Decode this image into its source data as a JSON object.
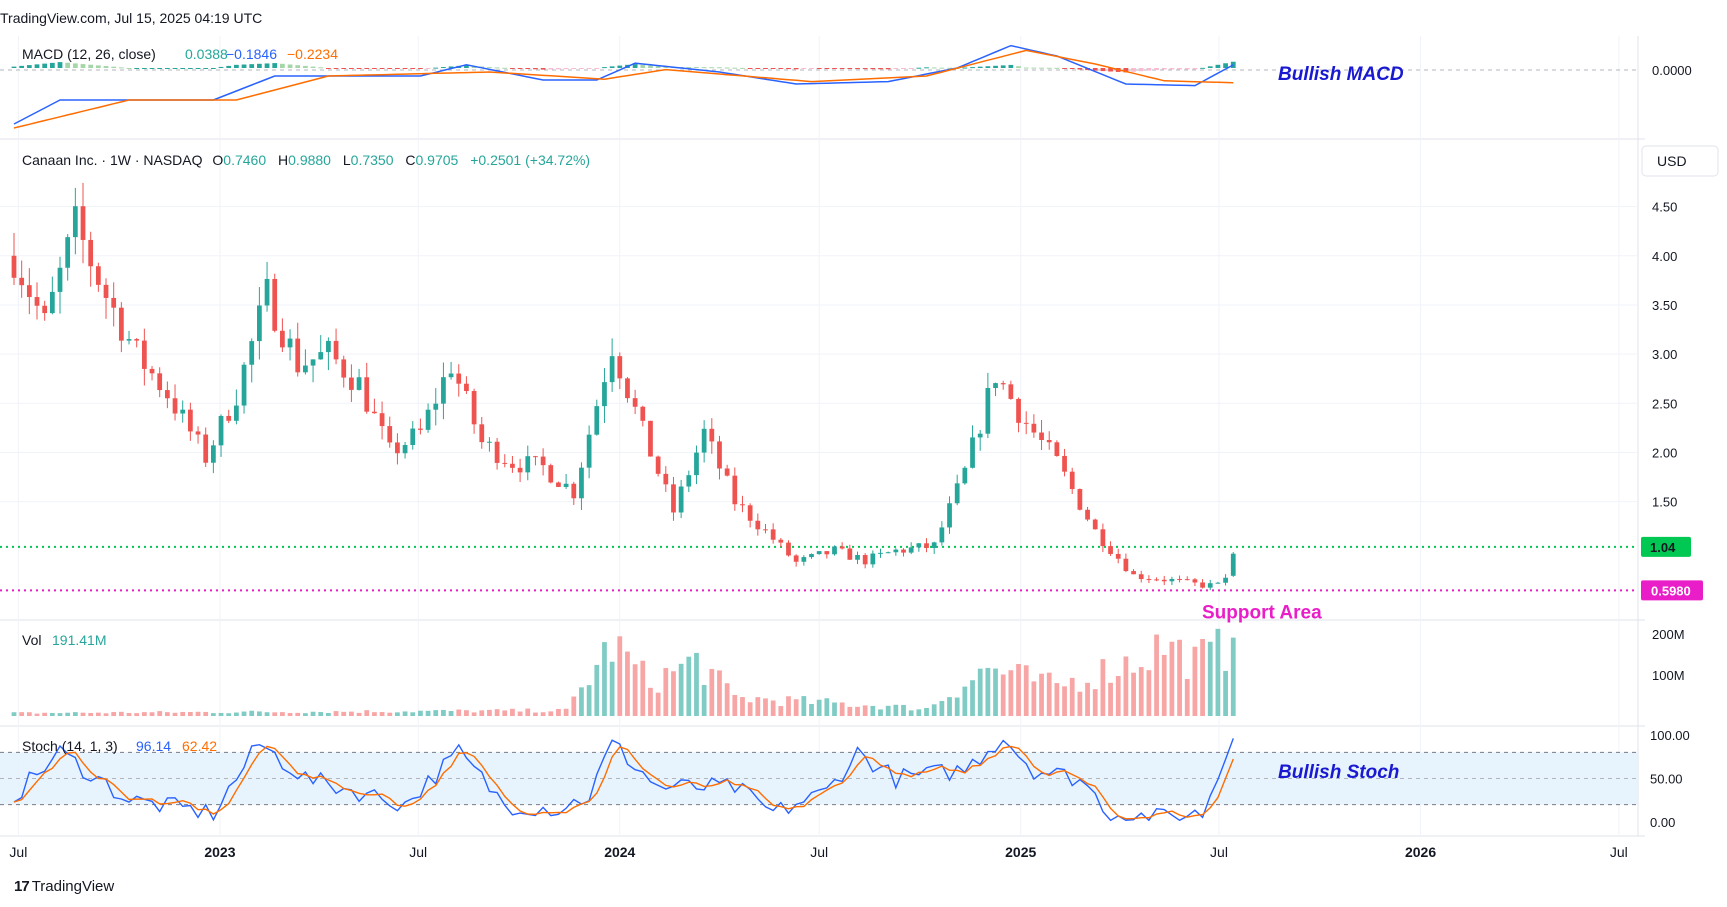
{
  "header": {
    "text": "TradingView.com, Jul 15, 2025 04:19 UTC"
  },
  "footer": {
    "brand": "TradingView"
  },
  "colors": {
    "up": "#26a69a",
    "down": "#ef5350",
    "up_light": "#a5d6a7",
    "down_light": "#f8bbd0",
    "macd_line": "#2962ff",
    "signal_line": "#ff6d00",
    "stoch_k": "#2962ff",
    "stoch_d": "#ff6d00",
    "resistance": "#00c853",
    "support": "#e91ec8",
    "annotation_blue": "#1919d2",
    "annotation_magenta": "#e91ec8",
    "stoch_band": "#e3f2fd"
  },
  "macd": {
    "legend_name": "MACD (12, 26, close)",
    "values": [
      "0.0388",
      "−0.1846",
      "−0.2234"
    ],
    "axis_label": "0.0000",
    "annotation": "Bullish MACD"
  },
  "price": {
    "legend": {
      "title": "Canaan Inc. · 1W · NASDAQ",
      "o_label": "O",
      "o": "0.7460",
      "h_label": "H",
      "h": "0.9880",
      "l_label": "L",
      "l": "0.7350",
      "c_label": "C",
      "c": "0.9705",
      "change": "+0.2501 (+34.72%)"
    },
    "currency": "USD",
    "ticks": [
      "4.50",
      "4.00",
      "3.50",
      "3.00",
      "2.50",
      "2.00",
      "1.50"
    ],
    "resistance_label": "1.04",
    "support_label": "0.5980",
    "support_annotation": "Support Area"
  },
  "volume": {
    "legend_name": "Vol",
    "value": "191.41M",
    "ticks": [
      "200M",
      "100M"
    ]
  },
  "stoch": {
    "legend_name": "Stoch (14, 1, 3)",
    "k": "96.14",
    "d": "62.42",
    "ticks": [
      "100.00",
      "50.00",
      "0.00"
    ],
    "annotation": "Bullish Stoch"
  },
  "time_axis": [
    "Jul",
    "2023",
    "Jul",
    "2024",
    "Jul",
    "2025",
    "Jul",
    "2026",
    "Jul"
  ],
  "chart_data": {
    "type": "candlestick",
    "symbol": "Canaan Inc.",
    "interval": "1W",
    "exchange": "NASDAQ",
    "ylim": [
      0.5,
      4.75
    ],
    "x_range": [
      "2022-06-27",
      "2026-07-13"
    ],
    "horizontal_lines": [
      {
        "value": 1.04,
        "style": "dotted"
      },
      {
        "value": 0.598,
        "style": "dotted"
      }
    ],
    "anchors": [
      [
        "2022-06-27",
        4.0
      ],
      [
        "2022-07-25",
        3.3
      ],
      [
        "2022-08-22",
        4.3
      ],
      [
        "2022-09-19",
        3.6
      ],
      [
        "2022-10-17",
        3.0
      ],
      [
        "2022-11-14",
        2.6
      ],
      [
        "2022-12-19",
        1.95
      ],
      [
        "2023-01-16",
        2.6
      ],
      [
        "2023-02-13",
        3.6
      ],
      [
        "2023-03-13",
        2.9
      ],
      [
        "2023-04-10",
        3.0
      ],
      [
        "2023-05-08",
        2.7
      ],
      [
        "2023-06-05",
        2.0
      ],
      [
        "2023-07-03",
        2.2
      ],
      [
        "2023-07-31",
        2.9
      ],
      [
        "2023-08-28",
        2.1
      ],
      [
        "2023-09-25",
        1.9
      ],
      [
        "2023-10-23",
        1.85
      ],
      [
        "2023-11-20",
        1.6
      ],
      [
        "2023-12-25",
        3.1
      ],
      [
        "2024-01-22",
        2.2
      ],
      [
        "2024-02-19",
        1.4
      ],
      [
        "2024-03-18",
        2.2
      ],
      [
        "2024-04-15",
        1.5
      ],
      [
        "2024-05-13",
        1.2
      ],
      [
        "2024-06-10",
        0.88
      ],
      [
        "2024-07-15",
        1.0
      ],
      [
        "2024-08-12",
        0.9
      ],
      [
        "2024-09-09",
        1.0
      ],
      [
        "2024-10-14",
        1.05
      ],
      [
        "2024-11-11",
        1.8
      ],
      [
        "2024-12-09",
        2.8
      ],
      [
        "2025-01-06",
        2.3
      ],
      [
        "2025-02-03",
        1.9
      ],
      [
        "2025-03-10",
        1.2
      ],
      [
        "2025-04-14",
        0.75
      ],
      [
        "2025-05-19",
        0.7
      ],
      [
        "2025-06-16",
        0.65
      ],
      [
        "2025-07-07",
        0.72
      ],
      [
        "2025-07-14",
        0.9705
      ]
    ],
    "last_candle": {
      "date": "2025-07-14",
      "open": 0.746,
      "high": 0.988,
      "low": 0.735,
      "close": 0.9705
    },
    "volume_ylim": [
      0,
      210
    ],
    "volume_anchors": [
      [
        "2022-06-27",
        8
      ],
      [
        "2023-11-13",
        15
      ],
      [
        "2023-12-25",
        195
      ],
      [
        "2024-01-29",
        90
      ],
      [
        "2024-03-11",
        150
      ],
      [
        "2024-04-15",
        50
      ],
      [
        "2024-08-12",
        30
      ],
      [
        "2024-10-07",
        20
      ],
      [
        "2024-12-02",
        130
      ],
      [
        "2025-02-03",
        80
      ],
      [
        "2025-04-14",
        150
      ],
      [
        "2025-05-12",
        195
      ],
      [
        "2025-06-09",
        150
      ],
      [
        "2025-07-14",
        191.41
      ]
    ],
    "stoch_ylim": [
      0,
      100
    ],
    "stoch_bands": [
      20,
      50,
      80
    ],
    "stoch_anchors": [
      [
        "2022-06-27",
        30
      ],
      [
        "2022-08-08",
        80
      ],
      [
        "2022-10-10",
        25
      ],
      [
        "2022-12-26",
        10
      ],
      [
        "2023-02-06",
        90
      ],
      [
        "2023-03-20",
        50
      ],
      [
        "2023-05-22",
        30
      ],
      [
        "2023-06-19",
        20
      ],
      [
        "2023-08-07",
        80
      ],
      [
        "2023-09-18",
        20
      ],
      [
        "2023-11-06",
        15
      ],
      [
        "2023-12-04",
        30
      ],
      [
        "2023-12-25",
        90
      ],
      [
        "2024-02-05",
        40
      ],
      [
        "2024-04-15",
        40
      ],
      [
        "2024-05-20",
        10
      ],
      [
        "2024-07-08",
        35
      ],
      [
        "2024-08-05",
        80
      ],
      [
        "2024-09-09",
        50
      ],
      [
        "2024-11-11",
        60
      ],
      [
        "2024-12-16",
        98
      ],
      [
        "2025-01-13",
        60
      ],
      [
        "2025-02-24",
        50
      ],
      [
        "2025-03-24",
        10
      ],
      [
        "2025-05-05",
        5
      ],
      [
        "2025-06-16",
        10
      ],
      [
        "2025-07-14",
        96.14
      ]
    ],
    "macd_ylim": [
      -0.8,
      0.35
    ],
    "macd_line_anchors": [
      [
        "2022-06-27",
        -0.7
      ],
      [
        "2022-08-08",
        -0.4
      ],
      [
        "2022-12-26",
        -0.4
      ],
      [
        "2023-02-20",
        -0.1
      ],
      [
        "2023-07-03",
        -0.1
      ],
      [
        "2023-08-14",
        0.04
      ],
      [
        "2023-10-23",
        -0.15
      ],
      [
        "2023-12-11",
        -0.15
      ],
      [
        "2024-01-15",
        0.06
      ],
      [
        "2024-04-01",
        -0.05
      ],
      [
        "2024-06-10",
        -0.2
      ],
      [
        "2024-09-02",
        -0.17
      ],
      [
        "2024-11-04",
        0.0
      ],
      [
        "2024-12-23",
        0.28
      ],
      [
        "2025-02-03",
        0.15
      ],
      [
        "2025-04-07",
        -0.2
      ],
      [
        "2025-06-09",
        -0.22
      ],
      [
        "2025-07-14",
        0.0388
      ]
    ],
    "signal_line_anchors": [
      [
        "2022-06-27",
        -0.75
      ],
      [
        "2022-10-10",
        -0.4
      ],
      [
        "2023-01-16",
        -0.4
      ],
      [
        "2023-04-10",
        -0.1
      ],
      [
        "2023-09-04",
        -0.05
      ],
      [
        "2023-12-18",
        -0.14
      ],
      [
        "2024-02-12",
        -0.02
      ],
      [
        "2024-06-24",
        -0.17
      ],
      [
        "2024-10-07",
        -0.1
      ],
      [
        "2025-01-06",
        0.22
      ],
      [
        "2025-03-10",
        0.05
      ],
      [
        "2025-05-12",
        -0.16
      ],
      [
        "2025-07-14",
        -0.1846
      ]
    ]
  }
}
